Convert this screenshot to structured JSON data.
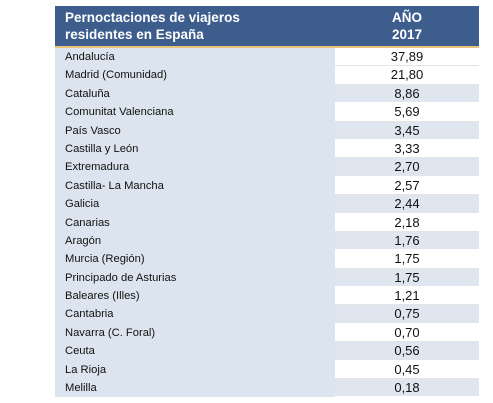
{
  "header": {
    "title_line1": "Pernoctaciones de viajeros",
    "title_line2": "residentes en España",
    "col_line1": "AÑO",
    "col_line2": "2017"
  },
  "rows": [
    {
      "region": "Andalucía",
      "value": "37,89"
    },
    {
      "region": "Madrid (Comunidad)",
      "value": "21,80"
    },
    {
      "region": "Cataluña",
      "value": "8,86"
    },
    {
      "region": "Comunitat Valenciana",
      "value": "5,69"
    },
    {
      "region": "País Vasco",
      "value": "3,45"
    },
    {
      "region": "Castilla y León",
      "value": "3,33"
    },
    {
      "region": "Extremadura",
      "value": "2,70"
    },
    {
      "region": "Castilla- La Mancha",
      "value": "2,57"
    },
    {
      "region": "Galicia",
      "value": "2,44"
    },
    {
      "region": "Canarias",
      "value": "2,18"
    },
    {
      "region": "Aragón",
      "value": "1,76"
    },
    {
      "region": "Murcia (Región)",
      "value": "1,75"
    },
    {
      "region": "Principado de Asturias",
      "value": "1,75"
    },
    {
      "region": "Baleares (Illes)",
      "value": "1,21"
    },
    {
      "region": "Cantabria",
      "value": "0,75"
    },
    {
      "region": "Navarra (C. Foral)",
      "value": "0,70"
    },
    {
      "region": "Ceuta",
      "value": "0,56"
    },
    {
      "region": "La Rioja",
      "value": "0,45"
    },
    {
      "region": "Melilla",
      "value": "0,18"
    }
  ],
  "colors": {
    "header_bg": "#3d5d8d",
    "header_rule": "#e7c27a",
    "name_bg": "#dce5ef",
    "value_shade_bg": "#dfe6ef",
    "value_white_bg": "#ffffff"
  }
}
